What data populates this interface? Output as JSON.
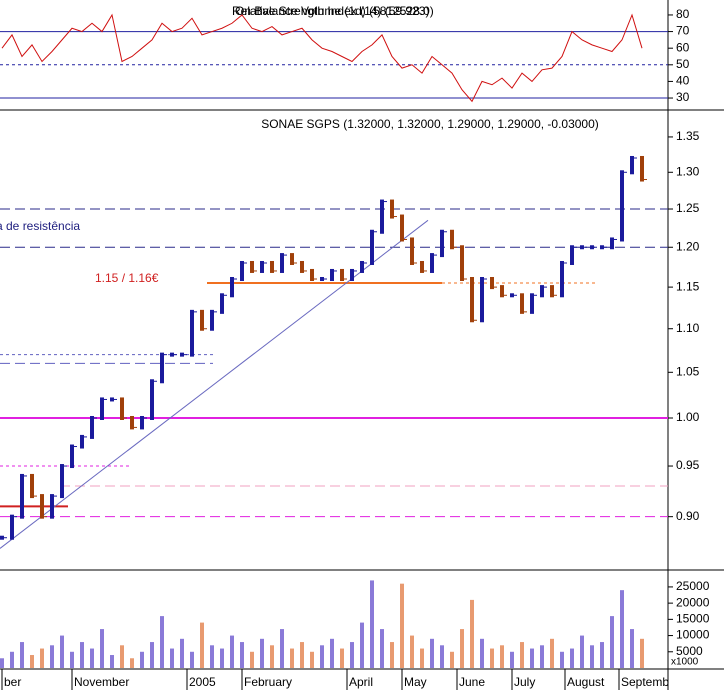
{
  "chart_data": {
    "type": "stock",
    "title": "SONAE SGPS (1.32000, 1.32000, 1.29000, 1.29000, -0.03000)",
    "indicator_titles": [
      "On Balance Volume (1d) (5812528.0)",
      "Relative Strength Index (14) (59.923)"
    ],
    "annotations": [
      "a de resistência",
      "1.15 / 1.16€"
    ],
    "xlim": [
      -0.2,
      66.6
    ],
    "xticks": [
      {
        "value": 0,
        "label": "ber"
      },
      {
        "value": 7,
        "label": "November"
      },
      {
        "value": 18.5,
        "label": "2005"
      },
      {
        "value": 24,
        "label": "February"
      },
      {
        "value": 34.5,
        "label": "April"
      },
      {
        "value": 40,
        "label": "May"
      },
      {
        "value": 45.5,
        "label": "June"
      },
      {
        "value": 51,
        "label": "July"
      },
      {
        "value": 56.3,
        "label": "August"
      },
      {
        "value": 61.7,
        "label": "Septemb"
      }
    ],
    "log_scale": true,
    "ylim": [
      0.852,
      1.382
    ],
    "yticks": [
      {
        "value": 0.9,
        "label": "0.90"
      },
      0.95,
      {
        "value": 1.0,
        "label": "1.00"
      },
      1.05,
      {
        "value": 1.1,
        "label": "1.10"
      },
      1.15,
      {
        "value": 1.2,
        "label": "1.20"
      },
      1.25,
      {
        "value": 1.3,
        "label": "1.30"
      },
      1.35
    ],
    "up_color": "#1a1a9c",
    "down_color": "#a0400a",
    "close": [
      0.88,
      0.9,
      0.94,
      0.92,
      0.9,
      0.92,
      0.95,
      0.97,
      0.98,
      1.0,
      1.02,
      1.02,
      1.0,
      0.99,
      1.0,
      1.04,
      1.07,
      1.07,
      1.07,
      1.12,
      1.1,
      1.12,
      1.14,
      1.16,
      1.18,
      1.17,
      1.18,
      1.17,
      1.19,
      1.18,
      1.17,
      1.16,
      1.16,
      1.17,
      1.16,
      1.17,
      1.18,
      1.22,
      1.26,
      1.24,
      1.21,
      1.18,
      1.17,
      1.19,
      1.22,
      1.2,
      1.16,
      1.11,
      1.16,
      1.15,
      1.14,
      1.14,
      1.12,
      1.14,
      1.15,
      1.14,
      1.18,
      1.2,
      1.2,
      1.2,
      1.2,
      1.21,
      1.3,
      1.32,
      1.29
    ],
    "levels": [
      {
        "value": 1.0,
        "color": "#e020e0",
        "style": "solid"
      },
      {
        "value": 1.25,
        "color": "#2a2a8a",
        "style": "dashed"
      },
      {
        "value": 1.2,
        "color": "#2a2a8a",
        "style": "dashed"
      },
      {
        "value": 0.9,
        "color": "#e020e0",
        "style": "dashed"
      },
      {
        "value": 0.93,
        "color": "#f0a0c0",
        "style": "dashed"
      },
      {
        "value": 1.155,
        "color": "#f07020",
        "style": "solid"
      },
      {
        "value": 1.155,
        "color": "#f07020",
        "style": "dotted"
      },
      {
        "value": 1.07,
        "color": "#6060c0",
        "style": "dotted"
      },
      {
        "value": 1.06,
        "color": "#6060c0",
        "style": "dashed"
      },
      {
        "value": 0.95,
        "color": "#e020e0",
        "style": "dotted"
      },
      {
        "value": 0.91,
        "color": "#d02020",
        "style": "solid"
      }
    ],
    "trendline": {
      "values": [
        0.87,
        1.235
      ],
      "color": "#6a6ac0"
    },
    "rsi": {
      "ylim": [
        24,
        89
      ],
      "yticks": [
        30,
        40,
        50,
        60,
        70,
        80
      ],
      "color": "#d01010",
      "line_color": "#2020a0",
      "levels": [
        70,
        50,
        30
      ],
      "values": [
        60,
        68,
        55,
        62,
        52,
        58,
        65,
        72,
        70,
        75,
        70,
        80,
        52,
        55,
        60,
        65,
        75,
        70,
        72,
        78,
        68,
        70,
        72,
        75,
        80,
        72,
        70,
        73,
        68,
        70,
        72,
        65,
        60,
        58,
        55,
        52,
        58,
        62,
        68,
        55,
        48,
        50,
        45,
        55,
        50,
        45,
        35,
        28,
        40,
        38,
        42,
        36,
        45,
        40,
        47,
        48,
        55,
        70,
        65,
        62,
        60,
        58,
        65,
        80,
        60
      ]
    },
    "volume": {
      "ylim": [
        0,
        29600
      ],
      "yticks": [
        5000,
        10000,
        15000,
        20000,
        25000
      ],
      "unit_label": "x1000",
      "up_color": "#8a7ad8",
      "down_color": "#e89a70",
      "values": [
        3000,
        5000,
        8000,
        4000,
        6000,
        7000,
        10000,
        5000,
        8000,
        6000,
        12000,
        4000,
        7000,
        3000,
        5000,
        8000,
        16000,
        6000,
        9000,
        5000,
        14000,
        7000,
        6000,
        10000,
        8000,
        5000,
        9000,
        7000,
        12000,
        6000,
        8000,
        5000,
        7000,
        9000,
        6000,
        8000,
        14000,
        27000,
        12000,
        8000,
        26000,
        10000,
        6000,
        9000,
        7000,
        5000,
        12000,
        21000,
        9000,
        6000,
        7000,
        5000,
        8000,
        6000,
        7000,
        9000,
        5000,
        6000,
        10000,
        7000,
        8000,
        16000,
        24000,
        12000,
        9000
      ]
    }
  }
}
